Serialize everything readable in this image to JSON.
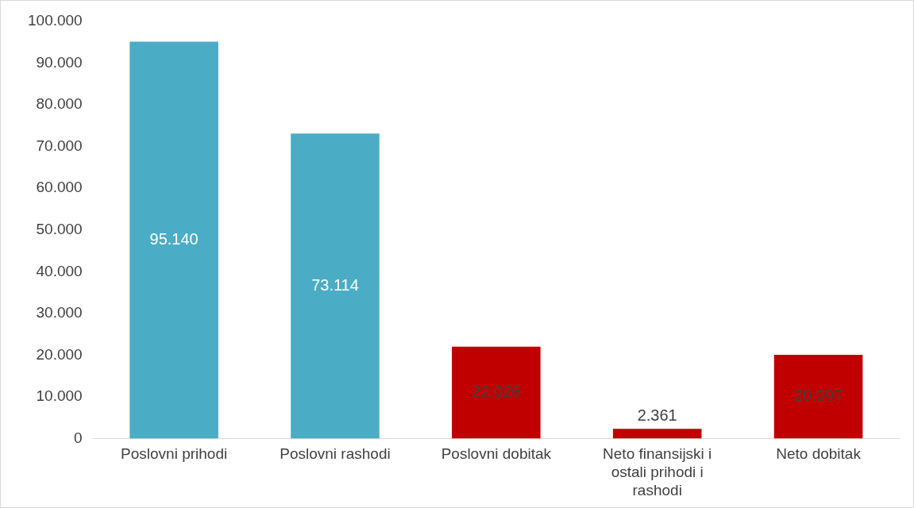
{
  "chart_data": {
    "type": "bar",
    "categories": [
      "Poslovni prihodi",
      "Poslovni rashodi",
      "Poslovni dobitak",
      "Neto finansijski i ostali prihodi i rashodi",
      "Neto dobitak"
    ],
    "values": [
      95140,
      73114,
      22026,
      2361,
      20097
    ],
    "colors": [
      "#4bacc6",
      "#4bacc6",
      "#c00000",
      "#c00000",
      "#c00000"
    ],
    "value_labels": [
      "95.140",
      "73.114",
      "22.026",
      "2.361",
      "20.097"
    ],
    "ylim": [
      0,
      100000
    ],
    "yticks": [
      {
        "value": 0,
        "label": "0"
      },
      {
        "value": 10000,
        "label": "10.000"
      },
      {
        "value": 20000,
        "label": "20.000"
      },
      {
        "value": 30000,
        "label": "30.000"
      },
      {
        "value": 40000,
        "label": "40.000"
      },
      {
        "value": 50000,
        "label": "50.000"
      },
      {
        "value": 60000,
        "label": "60.000"
      },
      {
        "value": 70000,
        "label": "70.000"
      },
      {
        "value": 80000,
        "label": "80.000"
      },
      {
        "value": 90000,
        "label": "90.000"
      },
      {
        "value": 100000,
        "label": "100.000"
      }
    ],
    "grid": false,
    "legend": false
  }
}
